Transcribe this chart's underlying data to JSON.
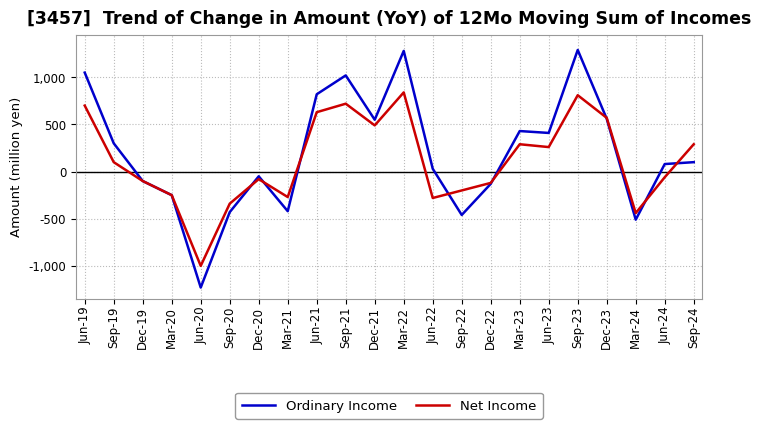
{
  "title": "[3457]  Trend of Change in Amount (YoY) of 12Mo Moving Sum of Incomes",
  "ylabel": "Amount (million yen)",
  "x_labels": [
    "Jun-19",
    "Sep-19",
    "Dec-19",
    "Mar-20",
    "Jun-20",
    "Sep-20",
    "Dec-20",
    "Mar-21",
    "Jun-21",
    "Sep-21",
    "Dec-21",
    "Mar-22",
    "Jun-22",
    "Sep-22",
    "Dec-22",
    "Mar-23",
    "Jun-23",
    "Sep-23",
    "Dec-23",
    "Mar-24",
    "Jun-24",
    "Sep-24"
  ],
  "ordinary_income": [
    1050,
    300,
    -100,
    -250,
    -1230,
    -430,
    -50,
    -420,
    820,
    1020,
    550,
    1280,
    30,
    -460,
    -130,
    430,
    410,
    1290,
    560,
    -510,
    80,
    100
  ],
  "net_income": [
    700,
    100,
    -100,
    -250,
    -1000,
    -340,
    -80,
    -270,
    630,
    720,
    490,
    840,
    -280,
    -200,
    -120,
    290,
    260,
    810,
    570,
    -440,
    -60,
    290
  ],
  "ordinary_income_color": "#0000cc",
  "net_income_color": "#cc0000",
  "line_width": 1.8,
  "ylim": [
    -1350,
    1450
  ],
  "yticks": [
    -1000,
    -500,
    0,
    500,
    1000
  ],
  "grid_color": "#bbbbbb",
  "bg_color": "#ffffff",
  "plot_bg_color": "#ffffff",
  "title_fontsize": 12.5,
  "label_fontsize": 9.5,
  "tick_fontsize": 8.5,
  "legend_fontsize": 9.5
}
